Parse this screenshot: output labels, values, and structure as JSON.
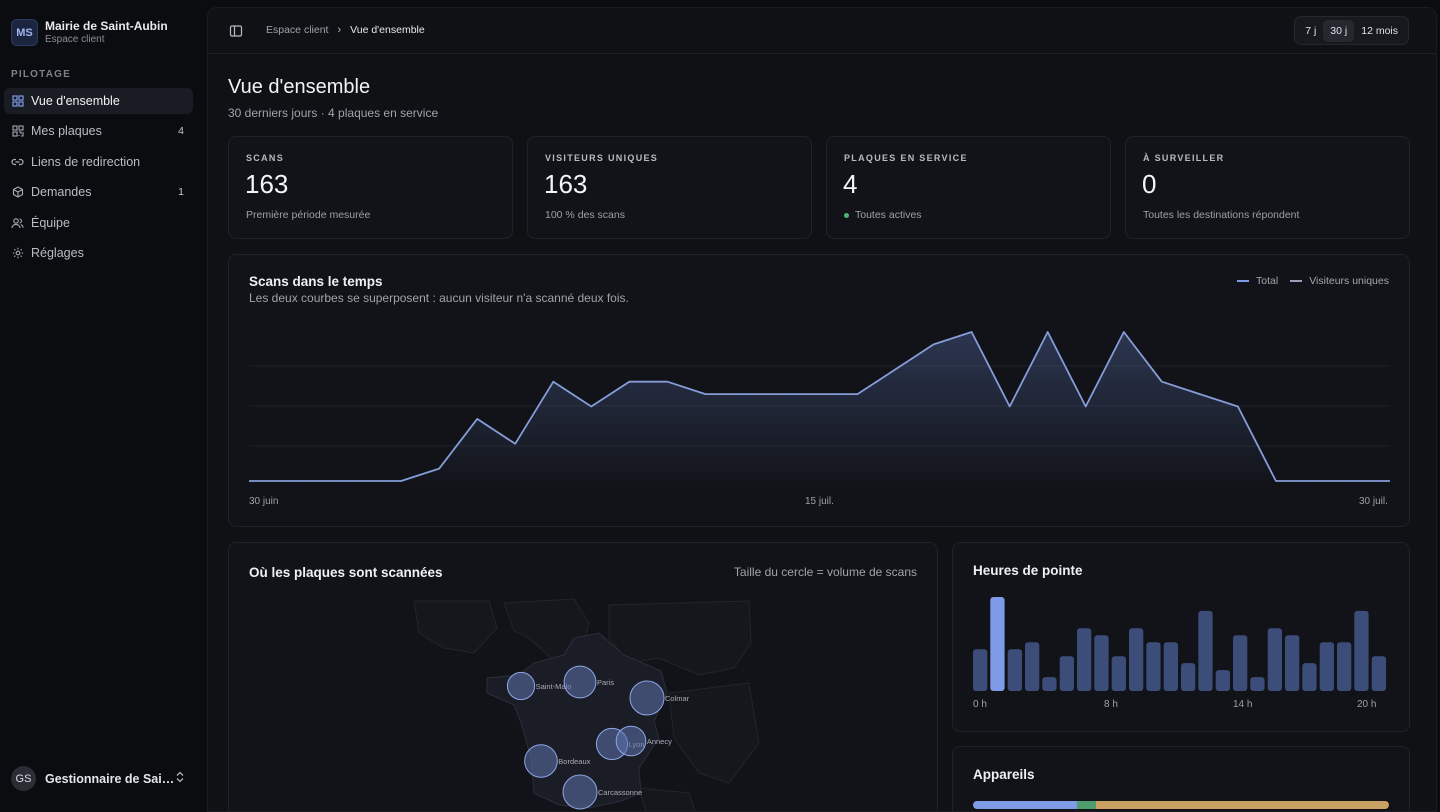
{
  "org": {
    "initials": "MS",
    "name": "Mairie de Saint-Aubin",
    "subtitle": "Espace client"
  },
  "sidebar": {
    "section": "PILOTAGE",
    "items": [
      {
        "label": "Vue d'ensemble",
        "icon": "grid-icon",
        "count": "",
        "active": true
      },
      {
        "label": "Mes plaques",
        "icon": "qr-icon",
        "count": "4"
      },
      {
        "label": "Liens de redirection",
        "icon": "link-icon",
        "count": ""
      },
      {
        "label": "Demandes",
        "icon": "box-icon",
        "count": "1"
      },
      {
        "label": "Équipe",
        "icon": "users-icon",
        "count": ""
      },
      {
        "label": "Réglages",
        "icon": "gear-icon",
        "count": ""
      }
    ]
  },
  "user": {
    "initials": "GS",
    "name": "Gestionnaire de Sai…"
  },
  "breadcrumb": {
    "prev": "Espace client",
    "current": "Vue d'ensemble"
  },
  "range": {
    "options": [
      "7 j",
      "30 j",
      "12 mois"
    ],
    "selected": "30 j"
  },
  "page": {
    "title": "Vue d'ensemble",
    "subtitle": "30 derniers jours · 4 plaques en service"
  },
  "stats": [
    {
      "label": "SCANS",
      "value": "163",
      "note": "Première période mesurée"
    },
    {
      "label": "VISITEURS UNIQUES",
      "value": "163",
      "note": "100 % des scans"
    },
    {
      "label": "PLAQUES EN SERVICE",
      "value": "4",
      "note": "Toutes actives",
      "status_color": "#4fb27a"
    },
    {
      "label": "À SURVEILLER",
      "value": "0",
      "note": "Toutes les destinations répondent"
    }
  ],
  "timeline": {
    "title": "Scans dans le temps",
    "subtitle": "Les deux courbes se superposent : aucun visiteur n'a scanné deux fois.",
    "legend": [
      "Total",
      "Visiteurs uniques"
    ],
    "x_ticks": [
      "30 juin",
      "15 juil.",
      "30 juil."
    ],
    "accent": "#7d9be6"
  },
  "chart_data": {
    "type": "area",
    "x": [
      "30 juin",
      "1 juil.",
      "2 juil.",
      "3 juil.",
      "4 juil.",
      "5 juil.",
      "6 juil.",
      "7 juil.",
      "8 juil.",
      "9 juil.",
      "10 juil.",
      "11 juil.",
      "12 juil.",
      "13 juil.",
      "14 juil.",
      "15 juil.",
      "16 juil.",
      "17 juil.",
      "18 juil.",
      "19 juil.",
      "20 juil.",
      "21 juil.",
      "22 juil.",
      "23 juil.",
      "24 juil.",
      "25 juil.",
      "26 juil.",
      "27 juil.",
      "28 juil.",
      "29 juil.",
      "30 juil."
    ],
    "series": [
      {
        "name": "Total",
        "values": [
          0,
          0,
          0,
          0,
          0,
          0.5,
          2.5,
          1.5,
          4,
          3,
          4,
          4,
          3.5,
          3.5,
          3.5,
          3.5,
          3.5,
          4.5,
          5.5,
          6,
          3,
          6,
          3,
          6,
          4,
          3.5,
          3,
          0,
          0,
          0,
          0
        ]
      },
      {
        "name": "Visiteurs uniques",
        "values": [
          0,
          0,
          0,
          0,
          0,
          0.5,
          2.5,
          1.5,
          4,
          3,
          4,
          4,
          3.5,
          3.5,
          3.5,
          3.5,
          3.5,
          4.5,
          5.5,
          6,
          3,
          6,
          3,
          6,
          4,
          3.5,
          3,
          0,
          0,
          0,
          0
        ]
      }
    ]
  },
  "map": {
    "title": "Où les plaques sont scannées",
    "note": "Taille du cercle = volume de scans",
    "cities": [
      {
        "name": "Saint-Malo",
        "scans": 16
      },
      {
        "name": "Paris",
        "scans": 22
      },
      {
        "name": "Colmar",
        "scans": 25
      },
      {
        "name": "Lyon",
        "scans": 21
      },
      {
        "name": "Annecy",
        "scans": 19
      },
      {
        "name": "Bordeaux",
        "scans": 23
      },
      {
        "name": "Carcassonne",
        "scans": 25
      }
    ]
  },
  "hours": {
    "title": "Heures de pointe",
    "ticks": [
      "0 h",
      "8 h",
      "14 h",
      "20 h"
    ],
    "values": [
      6,
      13.5,
      6,
      7,
      2,
      5,
      9,
      8,
      5,
      9,
      7,
      7,
      4,
      11.5,
      3,
      8,
      2,
      9,
      8,
      4,
      7,
      7,
      11.5,
      5
    ],
    "peak_color": "#7d9be6",
    "bar_color": "#3c4d7a"
  },
  "devices": {
    "title": "Appareils",
    "segments": [
      {
        "share": 0.25,
        "color": "#7d9be6"
      },
      {
        "share": 0.045,
        "color": "#4f9e6f"
      },
      {
        "share": 0.705,
        "color": "#c9a263"
      }
    ]
  }
}
